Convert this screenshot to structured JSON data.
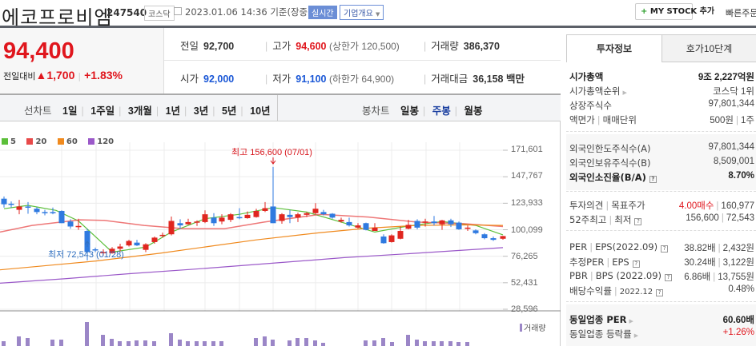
{
  "header": {
    "title": "에코프로비엠",
    "code": "247540",
    "market": "코스닥",
    "datetime": "2023.01.06 14:36",
    "basis": "기준(장중)",
    "realtime_badge": "실시간",
    "company_overview": "기업개요",
    "mystock_button": "MY STOCK 추가",
    "quick_order": "빠른주문"
  },
  "price": {
    "current": "94,400",
    "change_label": "전일대비",
    "change_value": "▲1,700",
    "change_pct": "+1.83%"
  },
  "stats": {
    "prev_close_label": "전일",
    "prev_close": "92,700",
    "high_label": "고가",
    "high": "94,600",
    "upper_limit": "(상한가 120,500)",
    "volume_label": "거래량",
    "volume": "386,370",
    "open_label": "시가",
    "open": "92,000",
    "low_label": "저가",
    "low": "91,100",
    "lower_limit": "(하한가 64,900)",
    "amount_label": "거래대금",
    "amount": "36,158 백만"
  },
  "chart_tabs": {
    "line_label": "선차트",
    "line_tabs": [
      "1일",
      "1주일",
      "3개월",
      "1년",
      "3년",
      "5년",
      "10년"
    ],
    "candle_label": "봉차트",
    "candle_tabs": [
      "일봉",
      "주봉",
      "월봉"
    ],
    "active_candle_tab": "주봉"
  },
  "chart": {
    "legend": [
      {
        "label": "5",
        "color": "#5cbf3a"
      },
      {
        "label": "20",
        "color": "#e84a4a"
      },
      {
        "label": "60",
        "color": "#f08a1e"
      },
      {
        "label": "120",
        "color": "#9b59c9"
      }
    ],
    "y_labels": [
      "171,601",
      "147,767",
      "123,933",
      "100,099",
      "76,265",
      "52,431",
      "28,596"
    ],
    "high_annotation": "최고 156,600 (07/01)",
    "low_annotation": "최저 72,543 (01/28)",
    "volume_legend": "거래량",
    "up_color": "#e0261f",
    "down_color": "#2f7ae0"
  },
  "chart_data": {
    "type": "candlestick",
    "title": "에코프로비엠 주봉",
    "ylim": [
      28596,
      171601
    ],
    "y_ticks": [
      171601,
      147767,
      123933,
      100099,
      76265,
      52431,
      28596
    ],
    "annotations": [
      {
        "text": "최고 156,600 (07/01)",
        "value": 156600
      },
      {
        "text": "최저 72,543 (01/28)",
        "value": 72543
      }
    ],
    "moving_averages": [
      "5",
      "20",
      "60",
      "120"
    ],
    "candles": [
      [
        5,
        128000,
        123000,
        130000,
        120000,
        "d"
      ],
      [
        14,
        123500,
        123000,
        125500,
        120000,
        "d"
      ],
      [
        24,
        121000,
        118000,
        127000,
        114000,
        "u"
      ],
      [
        35,
        121000,
        120500,
        125000,
        114500,
        "d"
      ],
      [
        46,
        119000,
        116000,
        120500,
        114000,
        "d"
      ],
      [
        56,
        116000,
        115500,
        118000,
        113000,
        "d"
      ],
      [
        66,
        116000,
        115000,
        120000,
        114000,
        "d"
      ],
      [
        77,
        117000,
        106000,
        117500,
        106000,
        "d"
      ],
      [
        88,
        107500,
        103000,
        109500,
        101000,
        "d"
      ],
      [
        98,
        103500,
        103000,
        110000,
        100000,
        "u"
      ],
      [
        109,
        99000,
        80000,
        101000,
        72543,
        "d"
      ],
      [
        119,
        82500,
        82000,
        84000,
        80000,
        "d"
      ],
      [
        129,
        79500,
        80000,
        82500,
        77000,
        "u"
      ],
      [
        140,
        79000,
        83000,
        84500,
        78500,
        "u"
      ],
      [
        150,
        83000,
        85000,
        87500,
        80500,
        "u"
      ],
      [
        161,
        86000,
        90000,
        91000,
        85000,
        "u"
      ],
      [
        171,
        88500,
        86000,
        91000,
        85500,
        "d"
      ],
      [
        182,
        82000,
        87000,
        88000,
        80000,
        "u"
      ],
      [
        193,
        89000,
        93000,
        94000,
        87500,
        "u"
      ],
      [
        203,
        95000,
        95500,
        97500,
        93000,
        "u"
      ],
      [
        214,
        96000,
        108000,
        112000,
        95000,
        "u"
      ],
      [
        225,
        106000,
        104000,
        109500,
        101000,
        "d"
      ],
      [
        235,
        105000,
        107000,
        110000,
        104500,
        "u"
      ],
      [
        246,
        106500,
        107500,
        108500,
        103500,
        "u"
      ],
      [
        256,
        107000,
        114000,
        117500,
        106000,
        "u"
      ],
      [
        267,
        111000,
        106000,
        115000,
        103500,
        "d"
      ],
      [
        277,
        107500,
        111000,
        114000,
        105000,
        "u"
      ],
      [
        288,
        109000,
        114000,
        115000,
        107000,
        "u"
      ],
      [
        299,
        111500,
        111000,
        119500,
        109500,
        "d"
      ],
      [
        309,
        110500,
        113500,
        116500,
        110000,
        "u"
      ],
      [
        320,
        111500,
        117000,
        119000,
        111000,
        "u"
      ],
      [
        331,
        117000,
        119500,
        125000,
        116000,
        "u"
      ],
      [
        341,
        121000,
        106000,
        156600,
        106000,
        "d"
      ],
      [
        352,
        108000,
        114000,
        115000,
        105500,
        "u"
      ],
      [
        362,
        111500,
        113500,
        118000,
        106000,
        "d"
      ],
      [
        372,
        111000,
        114000,
        115500,
        107000,
        "u"
      ],
      [
        383,
        113500,
        115000,
        116000,
        111500,
        "u"
      ],
      [
        394,
        115000,
        119000,
        124000,
        114000,
        "u"
      ],
      [
        404,
        116000,
        114000,
        118000,
        113000,
        "d"
      ],
      [
        415,
        114500,
        111000,
        115000,
        110000,
        "d"
      ],
      [
        426,
        109000,
        107500,
        111000,
        106500,
        "u"
      ],
      [
        436,
        107000,
        104000,
        111000,
        103000,
        "d"
      ],
      [
        447,
        104000,
        102000,
        106000,
        101000,
        "u"
      ],
      [
        457,
        106000,
        100000,
        106500,
        99500,
        "d"
      ],
      [
        468,
        99000,
        102000,
        106000,
        100500,
        "u"
      ],
      [
        479,
        94000,
        88000,
        96000,
        87500,
        "d"
      ],
      [
        489,
        89000,
        95000,
        96000,
        88500,
        "u"
      ],
      [
        500,
        92000,
        99000,
        103000,
        91500,
        "u"
      ],
      [
        510,
        101000,
        104500,
        109000,
        100500,
        "u"
      ],
      [
        521,
        108000,
        102000,
        109500,
        100500,
        "d"
      ],
      [
        531,
        106500,
        107500,
        110000,
        103000,
        "u"
      ],
      [
        542,
        107500,
        106000,
        112500,
        104000,
        "d"
      ],
      [
        552,
        108500,
        105000,
        109000,
        100000,
        "u"
      ],
      [
        563,
        108500,
        105000,
        110000,
        102500,
        "d"
      ],
      [
        573,
        106500,
        100500,
        107500,
        100000,
        "d"
      ],
      [
        584,
        102000,
        101000,
        104000,
        99000,
        "u"
      ],
      [
        594,
        99500,
        97000,
        100500,
        96000,
        "d"
      ],
      [
        605,
        96000,
        92500,
        97000,
        91500,
        "d"
      ],
      [
        616,
        92500,
        91000,
        94000,
        90000,
        "d"
      ],
      [
        628,
        92000,
        94400,
        94600,
        91100,
        "u"
      ]
    ],
    "ma_lines": {
      "ma5": [
        [
          5,
          119000
        ],
        [
          35,
          122000
        ],
        [
          70,
          117500
        ],
        [
          98,
          108000
        ],
        [
          140,
          80000
        ],
        [
          182,
          84500
        ],
        [
          214,
          98000
        ],
        [
          256,
          110000
        ],
        [
          299,
          114000
        ],
        [
          341,
          120000
        ],
        [
          383,
          116000
        ],
        [
          426,
          107000
        ],
        [
          468,
          98000
        ],
        [
          510,
          103500
        ],
        [
          552,
          107500
        ],
        [
          594,
          104000
        ],
        [
          628,
          95500
        ]
      ],
      "ma20": [
        [
          0,
          98000
        ],
        [
          40,
          104000
        ],
        [
          100,
          109000
        ],
        [
          130,
          108500
        ],
        [
          180,
          104000
        ],
        [
          230,
          101000
        ],
        [
          280,
          101000
        ],
        [
          330,
          107000
        ],
        [
          400,
          114000
        ],
        [
          460,
          111500
        ],
        [
          520,
          107000
        ],
        [
          580,
          105500
        ],
        [
          628,
          103000
        ]
      ],
      "ma60": [
        [
          0,
          64000
        ],
        [
          60,
          68000
        ],
        [
          120,
          72000
        ],
        [
          200,
          79000
        ],
        [
          260,
          85000
        ],
        [
          320,
          91000
        ],
        [
          400,
          97500
        ],
        [
          460,
          101500
        ],
        [
          520,
          104000
        ],
        [
          580,
          104500
        ],
        [
          628,
          104000
        ]
      ],
      "ma120": [
        [
          0,
          52000
        ],
        [
          80,
          56000
        ],
        [
          160,
          60500
        ],
        [
          250,
          65000
        ],
        [
          340,
          70000
        ],
        [
          430,
          75000
        ],
        [
          520,
          79000
        ],
        [
          628,
          84000
        ]
      ]
    },
    "volume_bars": [
      [
        5,
        6
      ],
      [
        24,
        12
      ],
      [
        35,
        10
      ],
      [
        66,
        8
      ],
      [
        77,
        8
      ],
      [
        109,
        30
      ],
      [
        129,
        14
      ],
      [
        140,
        9
      ],
      [
        150,
        6
      ],
      [
        161,
        6
      ],
      [
        171,
        7
      ],
      [
        182,
        7
      ],
      [
        193,
        6
      ],
      [
        214,
        16
      ],
      [
        225,
        8
      ],
      [
        235,
        6
      ],
      [
        246,
        6
      ],
      [
        256,
        6
      ],
      [
        267,
        6
      ],
      [
        277,
        6
      ],
      [
        320,
        10
      ],
      [
        331,
        12
      ],
      [
        341,
        8
      ],
      [
        362,
        7
      ],
      [
        372,
        10
      ],
      [
        383,
        10
      ],
      [
        394,
        7
      ],
      [
        404,
        4
      ],
      [
        457,
        7
      ],
      [
        468,
        7
      ],
      [
        479,
        10
      ],
      [
        490,
        5
      ],
      [
        510,
        14
      ],
      [
        521,
        8
      ],
      [
        531,
        6
      ],
      [
        542,
        6
      ],
      [
        552,
        6
      ],
      [
        563,
        6
      ],
      [
        573,
        5
      ],
      [
        584,
        5
      ]
    ]
  },
  "sidebar": {
    "tabs": [
      "투자정보",
      "호가10단계"
    ],
    "market_cap_label": "시가총액",
    "market_cap": "9조 2,227억원",
    "rank_label": "시가총액순위",
    "rank": "코스닥 1위",
    "shares_label": "상장주식수",
    "shares": "97,801,344",
    "par_label": "액면가",
    "unit_label": "매매단위",
    "par": "500원",
    "unit": "1주",
    "foreign_limit_label": "외국인한도주식수(A)",
    "foreign_limit": "97,801,344",
    "foreign_hold_label": "외국인보유주식수(B)",
    "foreign_hold": "8,509,001",
    "foreign_ratio_label": "외국인소진율(B/A)",
    "foreign_ratio": "8.70%",
    "opinion_label": "투자의견",
    "target_label": "목표주가",
    "opinion": "4.00매수",
    "target": "160,977",
    "w52_label": "52주최고",
    "w52_low_label": "최저",
    "w52_high": "156,600",
    "w52_low": "72,543",
    "per_label": "PER",
    "eps_label": "EPS(2022.09)",
    "per": "38.82배",
    "eps": "2,432원",
    "est_per_label": "추정PER",
    "est_eps_label": "EPS",
    "est_per": "30.24배",
    "est_eps": "3,122원",
    "pbr_label": "PBR",
    "bps_label": "BPS (2022.09)",
    "pbr": "6.86배",
    "bps": "13,755원",
    "div_label": "배당수익률",
    "div_date": "2022.12",
    "div": "0.48%",
    "sector_per_label": "동일업종 PER",
    "sector_per": "60.60배",
    "sector_chg_label": "동일업종 등락률",
    "sector_chg": "+1.26%"
  }
}
